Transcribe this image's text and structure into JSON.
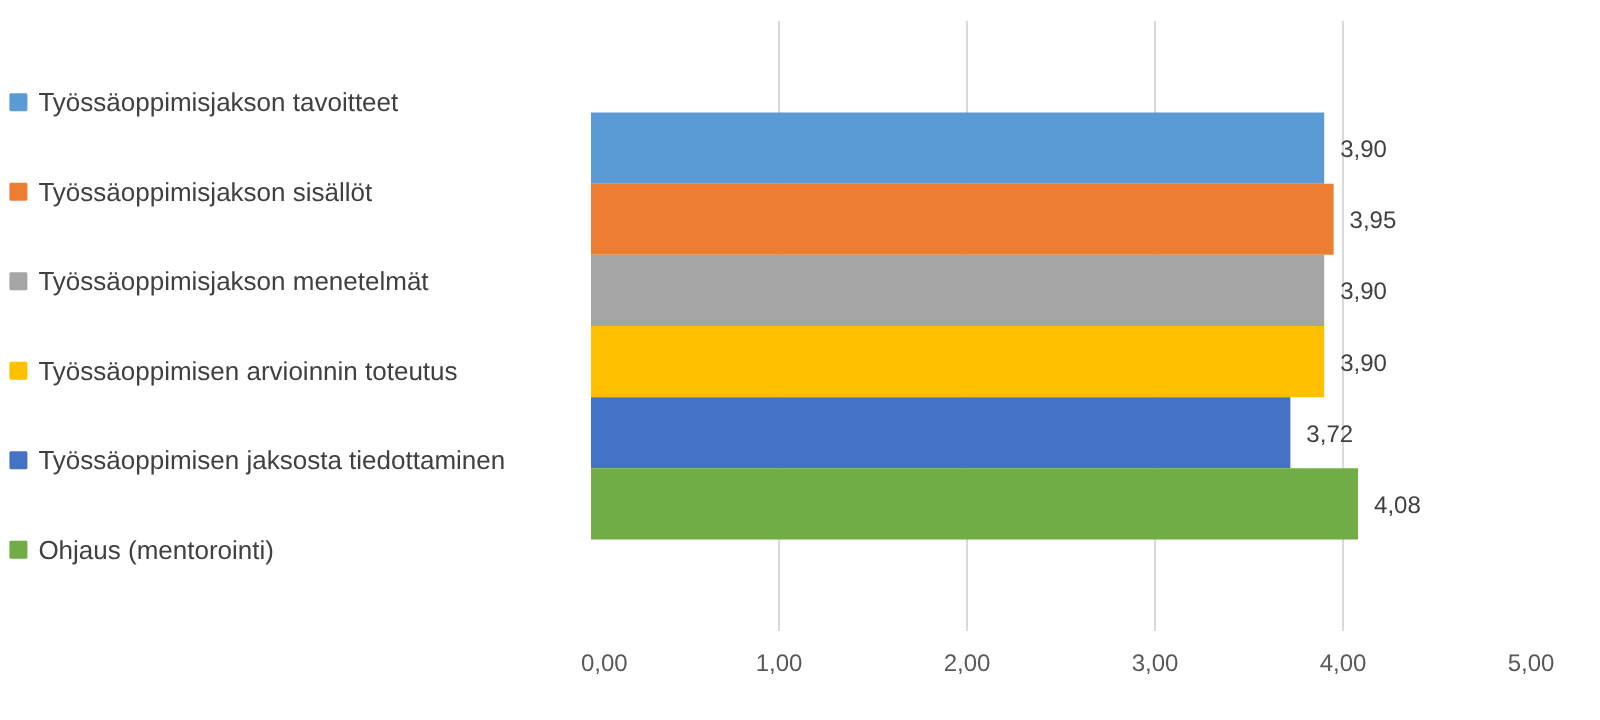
{
  "chart_data": {
    "type": "bar",
    "orientation": "horizontal",
    "categories": [
      null
    ],
    "series": [
      {
        "name": "Työssäoppimisjakson tavoitteet",
        "color": "#5b9bd5",
        "values": [
          3.9
        ],
        "value_labels": [
          "3,90"
        ]
      },
      {
        "name": "Työssäoppimisjakson sisällöt",
        "color": "#ed7d31",
        "values": [
          3.95
        ],
        "value_labels": [
          "3,95"
        ]
      },
      {
        "name": "Työssäoppimisjakson menetelmät",
        "color": "#a5a5a5",
        "values": [
          3.9
        ],
        "value_labels": [
          "3,90"
        ]
      },
      {
        "name": "Työssäoppimisen arvioinnin toteutus",
        "color": "#ffc000",
        "values": [
          3.9
        ],
        "value_labels": [
          "3,90"
        ]
      },
      {
        "name": "Työssäoppimisen jaksosta tiedottaminen",
        "color": "#4472c4",
        "values": [
          3.72
        ],
        "value_labels": [
          "3,72"
        ]
      },
      {
        "name": "Ohjaus (mentorointi)",
        "color": "#70ad47",
        "values": [
          4.08
        ],
        "value_labels": [
          "4,08"
        ]
      }
    ],
    "xlim": [
      0,
      5
    ],
    "xticks": [
      {
        "value": 0,
        "label": "0,00"
      },
      {
        "value": 1,
        "label": "1,00"
      },
      {
        "value": 2,
        "label": "2,00"
      },
      {
        "value": 3,
        "label": "3,00"
      },
      {
        "value": 4,
        "label": "4,00"
      },
      {
        "value": 5,
        "label": "5,00"
      }
    ],
    "grid": "x",
    "legend": "left"
  }
}
